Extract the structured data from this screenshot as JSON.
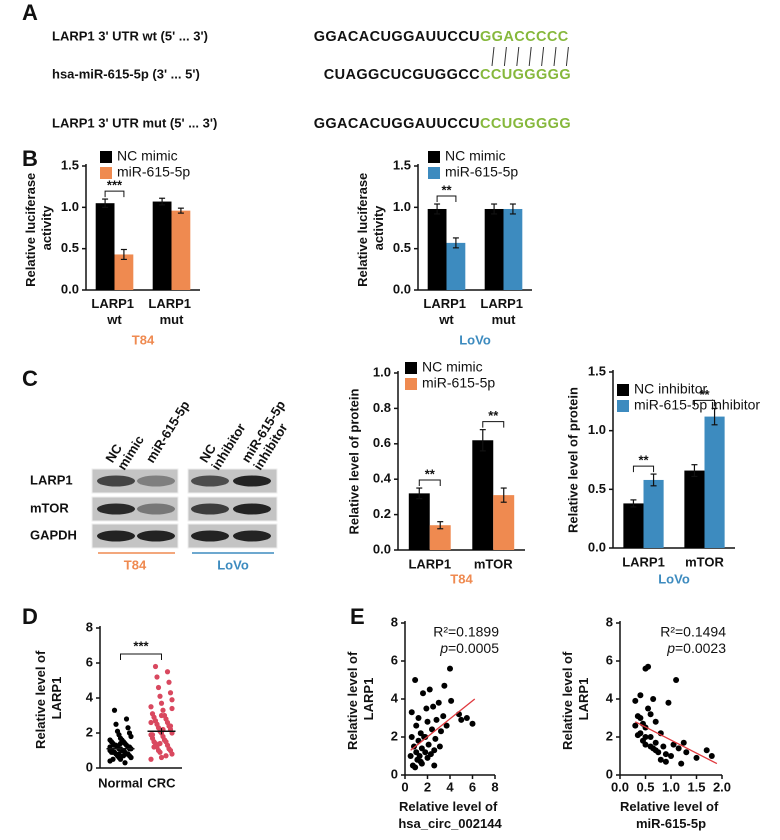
{
  "panel_labels": [
    "A",
    "B",
    "C",
    "D",
    "E"
  ],
  "alignment": {
    "seed_color": "#86b83c",
    "rows": [
      {
        "label": "LARP1 3' UTR wt (5' ... 3')",
        "sequence": "GGACACUGGAUUCCU",
        "seed": "GGACCCCC"
      },
      {
        "label": "hsa-miR-615-5p (3' ... 5')",
        "sequence": "CUAGGCUCGUGGCC",
        "seed": "CCUGGGGG"
      },
      {
        "label": "LARP1 3' UTR mut (5' ... 3')",
        "sequence": "GGACACUGGAUUCCU",
        "seed": "CCUGGGGG"
      }
    ]
  },
  "blot": {
    "columns": [
      "NC mimic",
      "miR-615-5p",
      "NC inhibitor",
      "miR-615-5p inhibitor"
    ],
    "rows": [
      "LARP1",
      "mTOR",
      "GAPDH"
    ],
    "groups": [
      {
        "label": "T84",
        "color": "#ef8a50"
      },
      {
        "label": "LoVo",
        "color": "#3d8bbf"
      }
    ]
  },
  "chart_data": [
    {
      "type": "bar",
      "ylabel": "Relative luciferase activity",
      "xlabel": "T84",
      "xlabel_color": "#ef8a50",
      "categories": [
        "LARP1 wt",
        "LARP1 mut"
      ],
      "series": [
        {
          "name": "NC mimic",
          "color": "#000000",
          "values": [
            1.05,
            1.07
          ],
          "errors": [
            0.05,
            0.04
          ]
        },
        {
          "name": "miR-615-5p",
          "color": "#ef8a50",
          "values": [
            0.43,
            0.96
          ],
          "errors": [
            0.06,
            0.03
          ]
        }
      ],
      "significance_labels": [
        "***",
        null
      ],
      "ylim": [
        0,
        1.5
      ],
      "yticks": [
        {
          "value": 0,
          "label": "0.0"
        },
        {
          "value": 0.5,
          "label": "0.5"
        },
        {
          "value": 1,
          "label": "1.0"
        },
        {
          "value": 1.5,
          "label": "1.5"
        }
      ]
    },
    {
      "type": "bar",
      "ylabel": "Relative luciferase activity",
      "xlabel": "LoVo",
      "xlabel_color": "#3d8bbf",
      "categories": [
        "LARP1 wt",
        "LARP1 mut"
      ],
      "series": [
        {
          "name": "NC mimic",
          "color": "#000000",
          "values": [
            0.98,
            0.98
          ],
          "errors": [
            0.06,
            0.06
          ]
        },
        {
          "name": "miR-615-5p",
          "color": "#3d8bbf",
          "values": [
            0.57,
            0.98
          ],
          "errors": [
            0.06,
            0.06
          ]
        }
      ],
      "significance_labels": [
        "**",
        null
      ],
      "ylim": [
        0,
        1.5
      ],
      "yticks": [
        {
          "value": 0,
          "label": "0.0"
        },
        {
          "value": 0.5,
          "label": "0.5"
        },
        {
          "value": 1,
          "label": "1.0"
        },
        {
          "value": 1.5,
          "label": "1.5"
        }
      ]
    },
    {
      "type": "bar",
      "ylabel": "Relative level of protein",
      "xlabel": "T84",
      "xlabel_color": "#ef8a50",
      "categories": [
        "LARP1",
        "mTOR"
      ],
      "series": [
        {
          "name": "NC mimic",
          "color": "#000000",
          "values": [
            0.32,
            0.62
          ],
          "errors": [
            0.03,
            0.06
          ]
        },
        {
          "name": "miR-615-5p",
          "color": "#ef8a50",
          "values": [
            0.14,
            0.31
          ],
          "errors": [
            0.02,
            0.04
          ]
        }
      ],
      "significance_labels": [
        "**",
        "**"
      ],
      "ylim": [
        0,
        1
      ],
      "yticks": [
        {
          "value": 0,
          "label": "0.0"
        },
        0.2,
        0.4,
        0.6,
        0.8,
        {
          "value": 1,
          "label": "1.0"
        }
      ]
    },
    {
      "type": "bar",
      "ylabel": "Relative level of protein",
      "xlabel": "LoVo",
      "xlabel_color": "#3d8bbf",
      "categories": [
        "LARP1",
        "mTOR"
      ],
      "series": [
        {
          "name": "NC inhibitor",
          "color": "#000000",
          "values": [
            0.38,
            0.66
          ],
          "errors": [
            0.03,
            0.05
          ]
        },
        {
          "name": "miR-615-5p inhibitor",
          "color": "#3d8bbf",
          "values": [
            0.58,
            1.12
          ],
          "errors": [
            0.05,
            0.07
          ]
        }
      ],
      "significance_labels": [
        "**",
        "**"
      ],
      "ylim": [
        0,
        1.5
      ],
      "yticks": [
        {
          "value": 0,
          "label": "0.0"
        },
        {
          "value": 0.5,
          "label": "0.5"
        },
        {
          "value": 1,
          "label": "1.0"
        },
        {
          "value": 1.5,
          "label": "1.5"
        }
      ]
    },
    {
      "type": "dot",
      "ylabel": "Relative level of LARP1",
      "categories": [
        "Normal",
        "CRC"
      ],
      "colors": [
        "#000000",
        "#d9485f"
      ],
      "values": [
        [
          0.4,
          0.5,
          0.6,
          0.6,
          0.7,
          0.7,
          0.8,
          0.8,
          0.8,
          0.9,
          0.9,
          0.9,
          1.0,
          1.0,
          1.0,
          1.0,
          1.1,
          1.1,
          1.1,
          1.2,
          1.2,
          1.2,
          1.3,
          1.3,
          1.3,
          1.4,
          1.4,
          1.5,
          1.5,
          1.6,
          1.6,
          1.7,
          1.8,
          1.9,
          2.0,
          2.1,
          2.3,
          2.5,
          2.8,
          3.3,
          0.3,
          0.5,
          0.7,
          0.9,
          1.0,
          1.2,
          1.4,
          0.6,
          0.8,
          1.1
        ],
        [
          0.5,
          0.6,
          0.8,
          0.9,
          1.0,
          1.0,
          1.1,
          1.2,
          1.3,
          1.4,
          1.5,
          1.5,
          1.6,
          1.7,
          1.8,
          1.9,
          2.0,
          2.0,
          2.1,
          2.2,
          2.3,
          2.4,
          2.5,
          2.6,
          2.7,
          2.8,
          2.9,
          3.0,
          3.1,
          3.3,
          3.5,
          3.7,
          3.9,
          4.1,
          4.3,
          4.6,
          4.9,
          5.2,
          5.5,
          5.8,
          0.7,
          1.2,
          1.6,
          1.9,
          2.2,
          2.6,
          3.0,
          3.4,
          1.4,
          2.4
        ]
      ],
      "means": [
        1.1,
        2.1
      ],
      "errors": [
        0.08,
        0.18
      ],
      "significance_label": "***",
      "ylim": [
        0,
        8
      ],
      "yticks": [
        0,
        2,
        4,
        6,
        8
      ]
    },
    {
      "type": "scatter",
      "xlabel": "Relative level of hsa_circ_002144",
      "ylabel": "Relative level of LARP1",
      "color": "#000000",
      "x": [
        0.5,
        0.6,
        0.7,
        0.8,
        0.9,
        1.0,
        1.0,
        1.1,
        1.2,
        1.2,
        1.3,
        1.4,
        1.5,
        1.5,
        1.6,
        1.7,
        1.8,
        1.9,
        2.0,
        2.0,
        2.1,
        2.2,
        2.3,
        2.4,
        2.5,
        2.6,
        2.7,
        2.8,
        3.0,
        3.1,
        3.2,
        3.4,
        3.5,
        3.7,
        4.0,
        4.1,
        4.8,
        5.0,
        5.5,
        6.0,
        0.9,
        1.4,
        2.6,
        0.6,
        1.8
      ],
      "y": [
        1.0,
        2.0,
        0.5,
        1.5,
        5.0,
        1.2,
        2.6,
        0.8,
        1.8,
        3.0,
        1.0,
        2.2,
        0.6,
        1.4,
        4.3,
        2.0,
        1.2,
        3.5,
        2.8,
        0.9,
        1.6,
        4.5,
        1.1,
        2.4,
        3.6,
        0.5,
        1.9,
        2.9,
        3.8,
        1.5,
        2.3,
        3.1,
        4.7,
        2.6,
        5.6,
        3.9,
        3.2,
        2.9,
        3.0,
        2.7,
        0.4,
        0.7,
        1.3,
        3.3,
        2.0
      ],
      "trendline": {
        "x": [
          0.5,
          6.2
        ],
        "y": [
          1.3,
          4.0
        ],
        "color": "#e0393e"
      },
      "annotations": [
        "R²=0.1899",
        "p=0.0005"
      ],
      "xlim": [
        0,
        8
      ],
      "xticks": [
        0,
        2,
        4,
        6,
        8
      ],
      "ylim": [
        0,
        8
      ],
      "yticks": [
        0,
        2,
        4,
        6,
        8
      ]
    },
    {
      "type": "scatter",
      "xlabel": "Relative level of miR-615-5p",
      "ylabel": "Relative level of LARP1",
      "color": "#000000",
      "x": [
        0.3,
        0.3,
        0.35,
        0.4,
        0.4,
        0.45,
        0.5,
        0.5,
        0.5,
        0.55,
        0.6,
        0.6,
        0.65,
        0.7,
        0.7,
        0.75,
        0.8,
        0.85,
        0.9,
        0.95,
        1.0,
        1.05,
        1.1,
        1.2,
        1.25,
        1.3,
        1.5,
        1.7,
        1.8,
        0.4,
        0.5,
        0.6,
        0.45,
        0.55,
        0.7,
        0.8,
        0.35,
        0.9,
        1.15,
        0.65
      ],
      "y": [
        2.6,
        3.9,
        3.1,
        2.2,
        4.2,
        1.8,
        5.6,
        2.5,
        1.6,
        5.7,
        2.0,
        3.2,
        1.4,
        2.8,
        1.7,
        1.2,
        2.2,
        1.5,
        1.1,
        3.8,
        1.0,
        1.6,
        5.0,
        0.6,
        1.7,
        1.2,
        0.9,
        1.3,
        1.0,
        3.0,
        2.0,
        1.5,
        2.7,
        3.5,
        1.3,
        0.8,
        2.1,
        0.7,
        1.4,
        4.0
      ],
      "trendline": {
        "x": [
          0.3,
          1.9
        ],
        "y": [
          2.8,
          0.6
        ],
        "color": "#e0393e"
      },
      "annotations": [
        "R²=0.1494",
        "p=0.0023"
      ],
      "xlim": [
        0,
        2
      ],
      "xticks": [
        {
          "value": 0,
          "label": "0.0"
        },
        0.5,
        {
          "value": 1,
          "label": "1.0"
        },
        1.5,
        {
          "value": 2,
          "label": "2.0"
        }
      ],
      "ylim": [
        0,
        8
      ],
      "yticks": [
        0,
        2,
        4,
        6,
        8
      ]
    }
  ]
}
